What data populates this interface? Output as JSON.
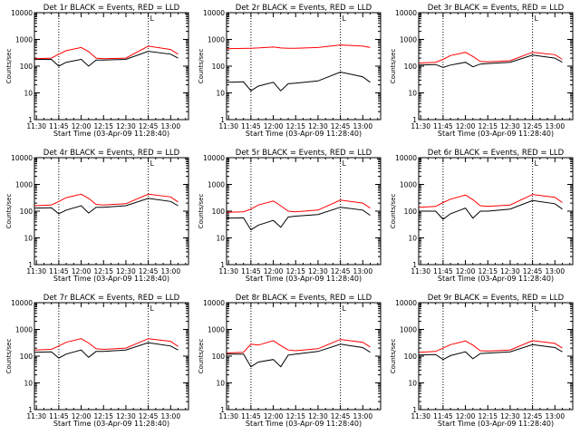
{
  "chart_data": [
    {
      "type": "line",
      "title": "Det 1r BLACK = Events, RED = LLD",
      "xlabel": "Start Time (03-Apr-09 11:28:40)",
      "ylabel": "Counts/sec",
      "x_ticks": [
        "11:30",
        "11:45",
        "12:00",
        "12:15",
        "12:30",
        "12:45",
        "13:00"
      ],
      "y_ticks": [
        "1",
        "10",
        "100",
        "1000",
        "10000"
      ],
      "ylim": [
        1,
        10000
      ],
      "y_scale": "log",
      "marker_times": [
        "11:45",
        "12:45"
      ],
      "corner_mark": "L",
      "x": [
        "11:30",
        "11:40",
        "11:45",
        "11:50",
        "12:00",
        "12:05",
        "12:10",
        "12:15",
        "12:30",
        "12:45",
        "13:00",
        "13:05"
      ],
      "series": [
        {
          "name": "Events",
          "color": "#000000",
          "values": [
            180,
            180,
            100,
            140,
            180,
            100,
            170,
            170,
            180,
            360,
            280,
            200
          ]
        },
        {
          "name": "LLD",
          "color": "#ff0000",
          "values": [
            190,
            200,
            280,
            380,
            500,
            350,
            200,
            190,
            200,
            560,
            420,
            280
          ]
        }
      ]
    },
    {
      "type": "line",
      "title": "Det 2r BLACK = Events, RED = LLD",
      "xlabel": "Start Time (03-Apr-09 11:28:40)",
      "ylabel": "Counts/sec",
      "x_ticks": [
        "11:30",
        "11:45",
        "12:00",
        "12:15",
        "12:30",
        "12:45",
        "13:00"
      ],
      "y_ticks": [
        "1",
        "10",
        "100",
        "1000",
        "10000"
      ],
      "ylim": [
        1,
        10000
      ],
      "y_scale": "log",
      "marker_times": [
        "11:45",
        "12:45"
      ],
      "corner_mark": "L",
      "x": [
        "11:30",
        "11:40",
        "11:45",
        "11:50",
        "12:00",
        "12:05",
        "12:10",
        "12:15",
        "12:30",
        "12:45",
        "13:00",
        "13:05"
      ],
      "series": [
        {
          "name": "Events",
          "color": "#000000",
          "values": [
            25,
            26,
            12,
            18,
            25,
            12,
            22,
            23,
            28,
            60,
            40,
            25
          ]
        },
        {
          "name": "LLD",
          "color": "#ff0000",
          "values": [
            450,
            460,
            470,
            480,
            520,
            480,
            470,
            470,
            500,
            620,
            560,
            500
          ]
        }
      ]
    },
    {
      "type": "line",
      "title": "Det 3r BLACK = Events, RED = LLD",
      "xlabel": "Start Time (03-Apr-09 11:28:40)",
      "ylabel": "Counts/sec",
      "x_ticks": [
        "11:30",
        "11:45",
        "12:00",
        "12:15",
        "12:30",
        "12:45",
        "13:00"
      ],
      "y_ticks": [
        "1",
        "10",
        "100",
        "1000",
        "10000"
      ],
      "ylim": [
        1,
        10000
      ],
      "y_scale": "log",
      "marker_times": [
        "11:45",
        "12:45"
      ],
      "corner_mark": "L",
      "x": [
        "11:30",
        "11:40",
        "11:45",
        "11:50",
        "12:00",
        "12:05",
        "12:10",
        "12:15",
        "12:30",
        "12:45",
        "13:00",
        "13:05"
      ],
      "series": [
        {
          "name": "Events",
          "color": "#000000",
          "values": [
            110,
            115,
            90,
            110,
            140,
            95,
            120,
            125,
            140,
            260,
            200,
            140
          ]
        },
        {
          "name": "LLD",
          "color": "#ff0000",
          "values": [
            130,
            140,
            180,
            250,
            330,
            230,
            150,
            145,
            160,
            330,
            270,
            180
          ]
        }
      ]
    },
    {
      "type": "line",
      "title": "Det 4r BLACK = Events, RED = LLD",
      "xlabel": "Start Time (03-Apr-09 11:28:40)",
      "ylabel": "Counts/sec",
      "x_ticks": [
        "11:30",
        "11:45",
        "12:00",
        "12:15",
        "12:30",
        "12:45",
        "13:00"
      ],
      "y_ticks": [
        "1",
        "10",
        "100",
        "1000",
        "10000"
      ],
      "ylim": [
        1,
        10000
      ],
      "y_scale": "log",
      "marker_times": [
        "11:45",
        "12:45"
      ],
      "corner_mark": "L",
      "x": [
        "11:30",
        "11:40",
        "11:45",
        "11:50",
        "12:00",
        "12:05",
        "12:10",
        "12:15",
        "12:30",
        "12:45",
        "13:00",
        "13:05"
      ],
      "series": [
        {
          "name": "Events",
          "color": "#000000",
          "values": [
            130,
            135,
            80,
            110,
            160,
            85,
            140,
            140,
            160,
            300,
            230,
            160
          ]
        },
        {
          "name": "LLD",
          "color": "#ff0000",
          "values": [
            160,
            170,
            230,
            320,
            430,
            300,
            180,
            170,
            190,
            430,
            340,
            220
          ]
        }
      ]
    },
    {
      "type": "line",
      "title": "Det 5r BLACK = Events, RED = LLD",
      "xlabel": "Start Time (03-Apr-09 11:28:40)",
      "ylabel": "Counts/sec",
      "x_ticks": [
        "11:30",
        "11:45",
        "12:00",
        "12:15",
        "12:30",
        "12:45",
        "13:00"
      ],
      "y_ticks": [
        "1",
        "10",
        "100",
        "1000",
        "10000"
      ],
      "ylim": [
        1,
        10000
      ],
      "y_scale": "log",
      "marker_times": [
        "11:45",
        "12:45"
      ],
      "corner_mark": "L",
      "x": [
        "11:30",
        "11:40",
        "11:45",
        "11:50",
        "12:00",
        "12:05",
        "12:10",
        "12:15",
        "12:30",
        "12:45",
        "13:00",
        "13:05"
      ],
      "series": [
        {
          "name": "Events",
          "color": "#000000",
          "values": [
            55,
            56,
            20,
            30,
            45,
            25,
            60,
            65,
            75,
            140,
            110,
            70
          ]
        },
        {
          "name": "LLD",
          "color": "#ff0000",
          "values": [
            90,
            95,
            120,
            170,
            240,
            160,
            100,
            95,
            110,
            260,
            200,
            130
          ]
        }
      ]
    },
    {
      "type": "line",
      "title": "Det 6r BLACK = Events, RED = LLD",
      "xlabel": "Start Time (03-Apr-09 11:28:40)",
      "ylabel": "Counts/sec",
      "x_ticks": [
        "11:30",
        "11:45",
        "12:00",
        "12:15",
        "12:30",
        "12:45",
        "13:00"
      ],
      "y_ticks": [
        "1",
        "10",
        "100",
        "1000",
        "10000"
      ],
      "ylim": [
        1,
        10000
      ],
      "y_scale": "log",
      "marker_times": [
        "11:45",
        "12:45"
      ],
      "corner_mark": "L",
      "x": [
        "11:30",
        "11:40",
        "11:45",
        "11:50",
        "12:00",
        "12:05",
        "12:10",
        "12:15",
        "12:30",
        "12:45",
        "13:00",
        "13:05"
      ],
      "series": [
        {
          "name": "Events",
          "color": "#000000",
          "values": [
            100,
            100,
            50,
            80,
            130,
            55,
            100,
            100,
            120,
            250,
            190,
            120
          ]
        },
        {
          "name": "LLD",
          "color": "#ff0000",
          "values": [
            140,
            150,
            210,
            280,
            400,
            270,
            160,
            150,
            170,
            420,
            330,
            210
          ]
        }
      ]
    },
    {
      "type": "line",
      "title": "Det 7r BLACK = Events, RED = LLD",
      "xlabel": "Start Time (03-Apr-09 11:28:40)",
      "ylabel": "Counts/sec",
      "x_ticks": [
        "11:30",
        "11:45",
        "12:00",
        "12:15",
        "12:30",
        "12:45",
        "13:00"
      ],
      "y_ticks": [
        "1",
        "10",
        "100",
        "1000",
        "10000"
      ],
      "ylim": [
        1,
        10000
      ],
      "y_scale": "log",
      "marker_times": [
        "11:45",
        "12:45"
      ],
      "corner_mark": "L",
      "x": [
        "11:30",
        "11:40",
        "11:45",
        "11:50",
        "12:00",
        "12:05",
        "12:10",
        "12:15",
        "12:30",
        "12:45",
        "13:00",
        "13:05"
      ],
      "series": [
        {
          "name": "Events",
          "color": "#000000",
          "values": [
            140,
            145,
            85,
            120,
            170,
            90,
            150,
            150,
            170,
            320,
            240,
            170
          ]
        },
        {
          "name": "LLD",
          "color": "#ff0000",
          "values": [
            170,
            180,
            240,
            330,
            450,
            310,
            190,
            180,
            200,
            450,
            360,
            230
          ]
        }
      ]
    },
    {
      "type": "line",
      "title": "Det 8r BLACK = Events, RED = LLD",
      "xlabel": "Start Time (03-Apr-09 11:28:40)",
      "ylabel": "Counts/sec",
      "x_ticks": [
        "11:30",
        "11:45",
        "12:00",
        "12:15",
        "12:30",
        "12:45",
        "13:00"
      ],
      "y_ticks": [
        "1",
        "10",
        "100",
        "1000",
        "10000"
      ],
      "ylim": [
        1,
        10000
      ],
      "y_scale": "log",
      "marker_times": [
        "11:45",
        "12:45"
      ],
      "corner_mark": "L",
      "x": [
        "11:30",
        "11:40",
        "11:45",
        "11:50",
        "12:00",
        "12:05",
        "12:10",
        "12:15",
        "12:30",
        "12:45",
        "13:00",
        "13:05"
      ],
      "series": [
        {
          "name": "Events",
          "color": "#000000",
          "values": [
            120,
            120,
            40,
            60,
            75,
            40,
            110,
            120,
            150,
            280,
            210,
            140
          ]
        },
        {
          "name": "LLD",
          "color": "#ff0000",
          "values": [
            130,
            140,
            280,
            260,
            380,
            250,
            170,
            160,
            190,
            420,
            330,
            220
          ]
        }
      ]
    },
    {
      "type": "line",
      "title": "Det 9r BLACK = Events, RED = LLD",
      "xlabel": "Start Time (03-Apr-09 11:28:40)",
      "ylabel": "Counts/sec",
      "x_ticks": [
        "11:30",
        "11:45",
        "12:00",
        "12:15",
        "12:30",
        "12:45",
        "13:00"
      ],
      "y_ticks": [
        "1",
        "10",
        "100",
        "1000",
        "10000"
      ],
      "ylim": [
        1,
        10000
      ],
      "y_scale": "log",
      "marker_times": [
        "11:45",
        "12:45"
      ],
      "corner_mark": "L",
      "x": [
        "11:30",
        "11:40",
        "11:45",
        "11:50",
        "12:00",
        "12:05",
        "12:10",
        "12:15",
        "12:30",
        "12:45",
        "13:00",
        "13:05"
      ],
      "series": [
        {
          "name": "Events",
          "color": "#000000",
          "values": [
            110,
            115,
            75,
            105,
            145,
            80,
            125,
            130,
            145,
            270,
            210,
            145
          ]
        },
        {
          "name": "LLD",
          "color": "#ff0000",
          "values": [
            140,
            150,
            200,
            270,
            370,
            260,
            160,
            155,
            170,
            380,
            300,
            200
          ]
        }
      ]
    }
  ]
}
